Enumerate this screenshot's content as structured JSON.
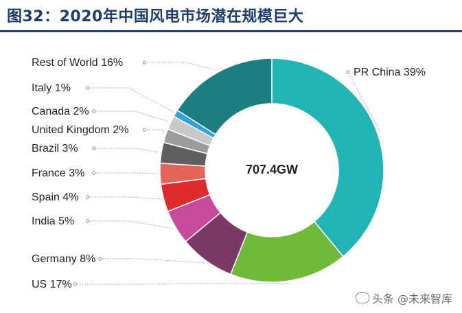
{
  "header": {
    "title": "图32：2020年中国风电市场潜在规模巨大"
  },
  "watermark": {
    "text": "头条 @未来智库",
    "icon": "wechat-like-icon"
  },
  "chart_data": {
    "type": "pie",
    "donut": true,
    "center_label": "707.4GW",
    "start_angle_deg": 0,
    "slices": [
      {
        "name": "PR China",
        "value": 39,
        "label": "PR China 39%",
        "color": "#22b3b4"
      },
      {
        "name": "US",
        "value": 17,
        "label": "US 17%",
        "color": "#71b93a"
      },
      {
        "name": "Germany",
        "value": 8,
        "label": "Germany 8%",
        "color": "#7d3966"
      },
      {
        "name": "India",
        "value": 5,
        "label": "India 5%",
        "color": "#c84a9a"
      },
      {
        "name": "Spain",
        "value": 4,
        "label": "Spain 4%",
        "color": "#e02b2d"
      },
      {
        "name": "France",
        "value": 3,
        "label": "France 3%",
        "color": "#e56258"
      },
      {
        "name": "Brazil",
        "value": 3,
        "label": "Brazil 3%",
        "color": "#5f5f5f"
      },
      {
        "name": "United Kingdom",
        "value": 2,
        "label": "United Kingdom 2%",
        "color": "#9c9c9c"
      },
      {
        "name": "Canada",
        "value": 2,
        "label": "Canada 2%",
        "color": "#c9c9c9"
      },
      {
        "name": "Italy",
        "value": 1,
        "label": "Italy 1%",
        "color": "#2da2e2"
      },
      {
        "name": "Rest of World",
        "value": 16,
        "label": "Rest of World 16%",
        "color": "#1b7f7f"
      }
    ]
  }
}
